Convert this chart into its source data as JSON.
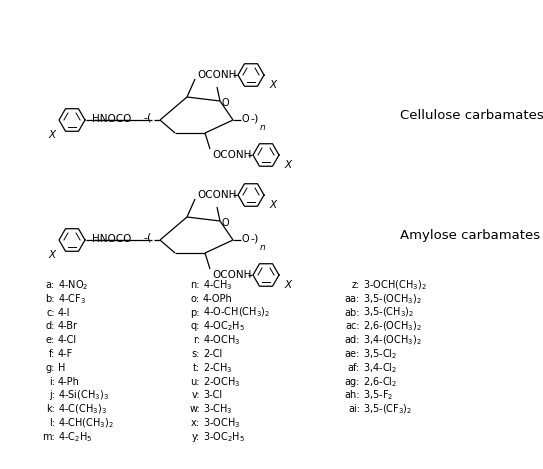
{
  "background_color": "#ffffff",
  "fig_width": 5.43,
  "fig_height": 4.69,
  "dpi": 100,
  "label_section_title1": "Cellulose carbamates",
  "label_section_title2": "Amylose carbamates",
  "col1_labels": [
    [
      "a:",
      "4-NO$_2$"
    ],
    [
      "b:",
      "4-CF$_3$"
    ],
    [
      "c:",
      "4-I"
    ],
    [
      "d:",
      "4-Br"
    ],
    [
      "e:",
      "4-Cl"
    ],
    [
      "f:",
      "4-F"
    ],
    [
      "g:",
      "H"
    ],
    [
      "i:",
      "4-Ph"
    ],
    [
      "j:",
      "4-Si(CH$_3$)$_3$"
    ],
    [
      "k:",
      "4-C(CH$_3$)$_3$"
    ],
    [
      "l:",
      "4-CH(CH$_3$)$_2$"
    ],
    [
      "m:",
      "4-C$_2$H$_5$"
    ]
  ],
  "col2_labels": [
    [
      "n:",
      "4-CH$_3$"
    ],
    [
      "o:",
      "4-OPh"
    ],
    [
      "p:",
      "4-O-CH(CH$_3$)$_2$"
    ],
    [
      "q:",
      "4-OC$_2$H$_5$"
    ],
    [
      "r:",
      "4-OCH$_3$"
    ],
    [
      "s:",
      "2-Cl"
    ],
    [
      "t:",
      "2-CH$_3$"
    ],
    [
      "u:",
      "2-OCH$_3$"
    ],
    [
      "v:",
      "3-Cl"
    ],
    [
      "w:",
      "3-CH$_3$"
    ],
    [
      "x:",
      "3-OCH$_3$"
    ],
    [
      "y:",
      "3-OC$_2$H$_5$"
    ]
  ],
  "col3_labels": [
    [
      "z:",
      "3-OCH(CH$_3$)$_2$"
    ],
    [
      "aa:",
      "3,5-(OCH$_3$)$_2$"
    ],
    [
      "ab:",
      "3,5-(CH$_3$)$_2$"
    ],
    [
      "ac:",
      "2,6-(OCH$_3$)$_2$"
    ],
    [
      "ad:",
      "3,4-(OCH$_3$)$_2$"
    ],
    [
      "ae:",
      "3,5-Cl$_2$"
    ],
    [
      "af:",
      "3,4-Cl$_2$"
    ],
    [
      "ag:",
      "2,6-Cl$_2$"
    ],
    [
      "ah:",
      "3,5-F$_2$"
    ],
    [
      "ai:",
      "3,5-(CF$_3$)$_2$"
    ]
  ],
  "text_color": "#000000",
  "label_fontsize": 7.0,
  "title_fontsize": 9.5
}
